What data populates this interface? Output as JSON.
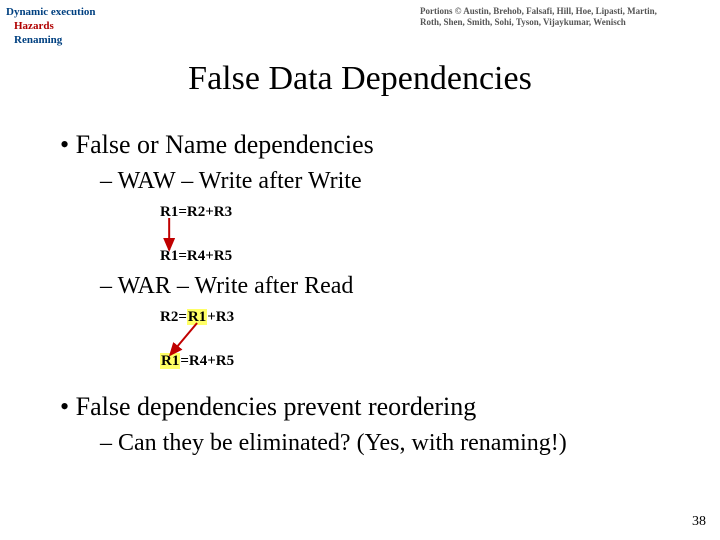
{
  "nav": {
    "l1": "Dynamic execution",
    "l2": "Hazards",
    "l3": "Renaming"
  },
  "credits": {
    "line1": "Portions © Austin, Brehob, Falsafi, Hill, Hoe, Lipasti, Martin,",
    "line2": "Roth, Shen, Smith, Sohi, Tyson, Vijaykumar, Wenisch"
  },
  "title": "False Data Dependencies",
  "bullets": {
    "b1": "• False or Name dependencies",
    "d1": "– WAW – Write after Write",
    "waw1_a": "R1",
    "waw1_b": "=R2+R3",
    "waw2_a": "R1",
    "waw2_b": "=R4+R5",
    "d2": "– WAR – Write after Read",
    "war1": "R2=",
    "war1_hl": "R1",
    "war1_c": "+R3",
    "war2_hl": "R1",
    "war2": "=R4+R5",
    "b2": "• False dependencies prevent reordering",
    "d3": "– Can they be eliminated? (Yes, with renaming!)"
  },
  "pagenum": "38",
  "colors": {
    "arrow": "#c00000",
    "highlight": "#ffff66"
  }
}
